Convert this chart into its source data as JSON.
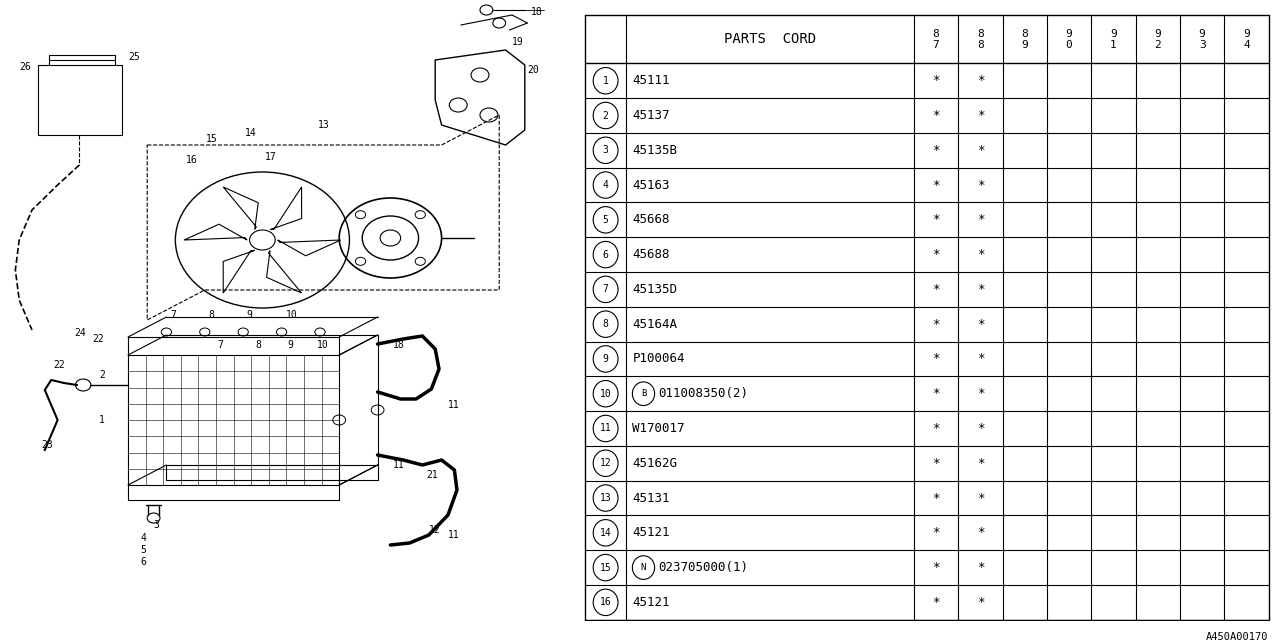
{
  "ref_code": "A450A00170",
  "bg_color": "#ffffff",
  "line_color": "#000000",
  "table": {
    "header_label": "PARTS  CORD",
    "year_cols": [
      "8\n7",
      "8\n8",
      "8\n9",
      "9\n0",
      "9\n1",
      "9\n2",
      "9\n3",
      "9\n4"
    ],
    "rows": [
      {
        "num": "1",
        "special": "",
        "code": "45111",
        "marks": [
          1,
          1,
          0,
          0,
          0,
          0,
          0,
          0
        ]
      },
      {
        "num": "2",
        "special": "",
        "code": "45137",
        "marks": [
          1,
          1,
          0,
          0,
          0,
          0,
          0,
          0
        ]
      },
      {
        "num": "3",
        "special": "",
        "code": "45135B",
        "marks": [
          1,
          1,
          0,
          0,
          0,
          0,
          0,
          0
        ]
      },
      {
        "num": "4",
        "special": "",
        "code": "45163",
        "marks": [
          1,
          1,
          0,
          0,
          0,
          0,
          0,
          0
        ]
      },
      {
        "num": "5",
        "special": "",
        "code": "45668",
        "marks": [
          1,
          1,
          0,
          0,
          0,
          0,
          0,
          0
        ]
      },
      {
        "num": "6",
        "special": "",
        "code": "45688",
        "marks": [
          1,
          1,
          0,
          0,
          0,
          0,
          0,
          0
        ]
      },
      {
        "num": "7",
        "special": "",
        "code": "45135D",
        "marks": [
          1,
          1,
          0,
          0,
          0,
          0,
          0,
          0
        ]
      },
      {
        "num": "8",
        "special": "",
        "code": "45164A",
        "marks": [
          1,
          1,
          0,
          0,
          0,
          0,
          0,
          0
        ]
      },
      {
        "num": "9",
        "special": "",
        "code": "P100064",
        "marks": [
          1,
          1,
          0,
          0,
          0,
          0,
          0,
          0
        ]
      },
      {
        "num": "10",
        "special": "B",
        "code": "011008350(2)",
        "marks": [
          1,
          1,
          0,
          0,
          0,
          0,
          0,
          0
        ]
      },
      {
        "num": "11",
        "special": "",
        "code": "W170017",
        "marks": [
          1,
          1,
          0,
          0,
          0,
          0,
          0,
          0
        ]
      },
      {
        "num": "12",
        "special": "",
        "code": "45162G",
        "marks": [
          1,
          1,
          0,
          0,
          0,
          0,
          0,
          0
        ]
      },
      {
        "num": "13",
        "special": "",
        "code": "45131",
        "marks": [
          1,
          1,
          0,
          0,
          0,
          0,
          0,
          0
        ]
      },
      {
        "num": "14",
        "special": "",
        "code": "45121",
        "marks": [
          1,
          1,
          0,
          0,
          0,
          0,
          0,
          0
        ]
      },
      {
        "num": "15",
        "special": "N",
        "code": "023705000(1)",
        "marks": [
          1,
          1,
          0,
          0,
          0,
          0,
          0,
          0
        ]
      },
      {
        "num": "16",
        "special": "",
        "code": "45121",
        "marks": [
          1,
          1,
          0,
          0,
          0,
          0,
          0,
          0
        ]
      }
    ]
  }
}
